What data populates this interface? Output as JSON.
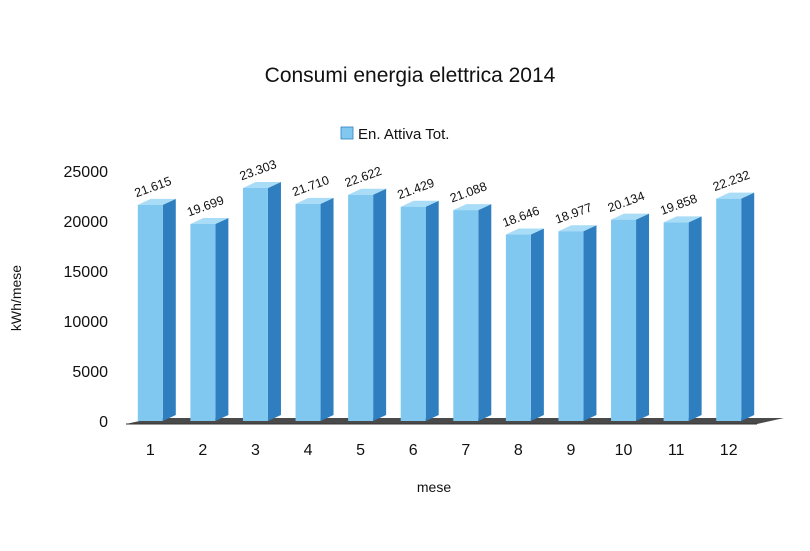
{
  "chart_data": {
    "type": "bar",
    "title": "Consumi energia elettrica 2014",
    "xlabel": "mese",
    "ylabel": "kWh/mese",
    "categories": [
      "1",
      "2",
      "3",
      "4",
      "5",
      "6",
      "7",
      "8",
      "9",
      "10",
      "11",
      "12"
    ],
    "series": [
      {
        "name": "En. Attiva Tot.",
        "values": [
          21615,
          19699,
          23303,
          21710,
          22622,
          21429,
          21088,
          18646,
          18977,
          20134,
          19858,
          22232
        ],
        "labels": [
          "21.615",
          "19.699",
          "23.303",
          "21.710",
          "22.622",
          "21.429",
          "21.088",
          "18.646",
          "18.977",
          "20.134",
          "19.858",
          "22.232"
        ]
      }
    ],
    "ylim": [
      0,
      25000
    ],
    "yticks": [
      "0",
      "5000",
      "10000",
      "15000",
      "20000",
      "25000"
    ],
    "grid": false,
    "legend_position": "top-center",
    "colors": {
      "bar_front": "#80c8f0",
      "bar_side": "#2f7fc0",
      "bar_top": "#a9dcf6",
      "floor": "#4a4a4a"
    }
  }
}
